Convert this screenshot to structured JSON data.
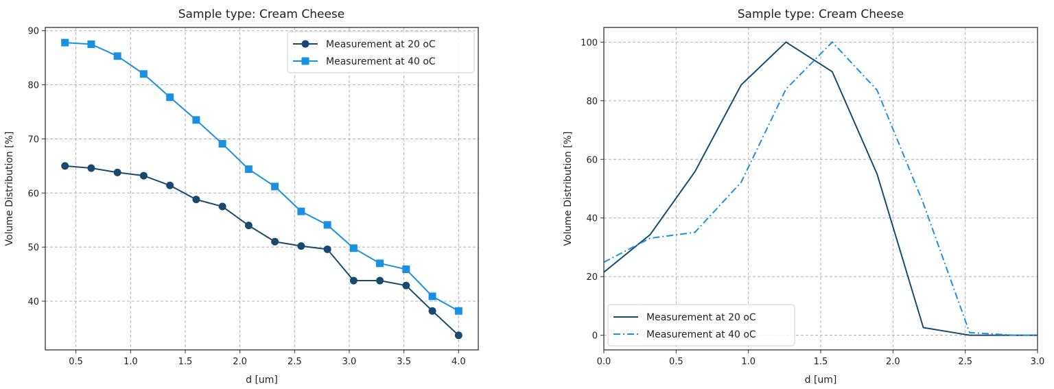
{
  "colors": {
    "series_20": "#174a6e",
    "series_40": "#1a90e3"
  },
  "chart_data": [
    {
      "type": "line",
      "title": "Sample type: Cream Cheese",
      "xlabel": "d [um]",
      "ylabel": "Volume Distribution [%]",
      "xlim": [
        0.22,
        4.18
      ],
      "ylim": [
        31.0,
        90.6
      ],
      "xticks": [
        "0.5",
        "1.0",
        "1.5",
        "2.0",
        "2.5",
        "3.0",
        "3.5",
        "4.0"
      ],
      "yticks": [
        "40",
        "50",
        "60",
        "70",
        "80",
        "90"
      ],
      "grid": true,
      "legend": "upper right",
      "x": [
        0.4,
        0.64,
        0.88,
        1.12,
        1.36,
        1.6,
        1.84,
        2.08,
        2.32,
        2.56,
        2.8,
        3.04,
        3.28,
        3.52,
        3.76,
        4.0
      ],
      "series": [
        {
          "name": "Measurement at 20 oC",
          "marker": "circle",
          "line": "solid",
          "values": [
            65.0,
            64.6,
            63.8,
            63.2,
            61.4,
            58.8,
            57.5,
            54.0,
            51.0,
            50.2,
            49.6,
            43.8,
            43.8,
            42.9,
            38.2,
            33.7
          ]
        },
        {
          "name": "Measurement at 40 oC",
          "marker": "square",
          "line": "solid",
          "values": [
            87.8,
            87.5,
            85.3,
            82.0,
            77.7,
            73.5,
            69.1,
            64.4,
            61.2,
            56.6,
            54.1,
            49.8,
            47.0,
            45.9,
            40.9,
            38.2
          ]
        }
      ]
    },
    {
      "type": "line",
      "title": "Sample type: Cream Cheese",
      "xlabel": "d [um]",
      "ylabel": "Volume Distribution [%]",
      "xlim": [
        0.0,
        3.0
      ],
      "ylim": [
        -5,
        105
      ],
      "xticks": [
        "0.0",
        "0.5",
        "1.0",
        "1.5",
        "2.0",
        "2.5",
        "3.0"
      ],
      "yticks": [
        "0",
        "20",
        "40",
        "60",
        "80",
        "100"
      ],
      "grid": true,
      "legend": "lower left",
      "x": [
        0.0,
        0.32,
        0.63,
        0.95,
        1.26,
        1.58,
        1.89,
        2.21,
        2.53,
        2.84,
        3.0
      ],
      "series": [
        {
          "name": "Measurement at 20 oC",
          "marker": "none",
          "line": "solid",
          "values": [
            21.5,
            34.3,
            55.8,
            85.4,
            100,
            89.9,
            55.0,
            2.6,
            0,
            0,
            0
          ]
        },
        {
          "name": "Measurement at 40 oC",
          "marker": "none",
          "line": "dashdot",
          "values": [
            24.9,
            33.1,
            35.1,
            52.2,
            84.0,
            100,
            83.6,
            45.0,
            0.9,
            0,
            0
          ]
        }
      ]
    }
  ]
}
